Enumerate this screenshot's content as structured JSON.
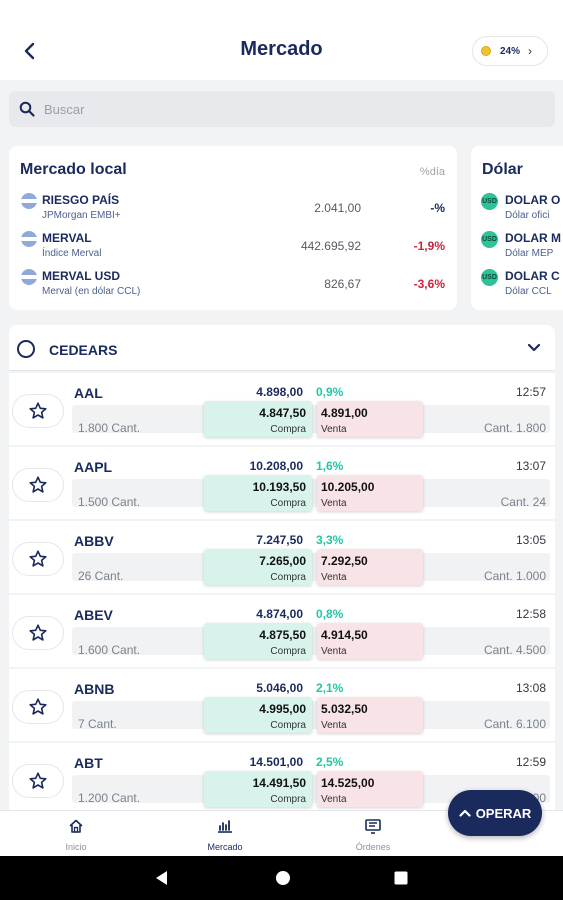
{
  "header": {
    "title": "Mercado",
    "pill_value": "24%"
  },
  "search": {
    "placeholder": "Buscar"
  },
  "local_market": {
    "title": "Mercado local",
    "column": "%día",
    "items": [
      {
        "name": "RIESGO PAÍS",
        "desc": "JPMorgan EMBI+",
        "value": "2.041,00",
        "change": "-%"
      },
      {
        "name": "MERVAL",
        "desc": "Índice Merval",
        "value": "442.695,92",
        "change": "-1,9%"
      },
      {
        "name": "MERVAL USD",
        "desc": "Merval (en dólar CCL)",
        "value": "826,67",
        "change": "-3,6%"
      }
    ]
  },
  "dolar_market": {
    "title": "Dólar",
    "items": [
      {
        "icon_text": "USD",
        "name": "DOLAR O",
        "desc": "Dólar ofici"
      },
      {
        "icon_text": "USD",
        "name": "DOLAR M",
        "desc": "Dólar MEP"
      },
      {
        "icon_text": "USD",
        "name": "DOLAR C",
        "desc": "Dólar CCL"
      }
    ]
  },
  "cedears": {
    "label": "CEDEARS",
    "rows": [
      {
        "symbol": "AAL",
        "last": "4.898,00",
        "change": "0,9%",
        "time": "12:57",
        "bid_qty": "1.800 Cant.",
        "bid": "4.847,50",
        "ask": "4.891,00",
        "ask_qty": "Cant. 1.800"
      },
      {
        "symbol": "AAPL",
        "last": "10.208,00",
        "change": "1,6%",
        "time": "13:07",
        "bid_qty": "1.500 Cant.",
        "bid": "10.193,50",
        "ask": "10.205,00",
        "ask_qty": "Cant. 24"
      },
      {
        "symbol": "ABBV",
        "last": "7.247,50",
        "change": "3,3%",
        "time": "13:05",
        "bid_qty": "26 Cant.",
        "bid": "7.265,00",
        "ask": "7.292,50",
        "ask_qty": "Cant. 1.000"
      },
      {
        "symbol": "ABEV",
        "last": "4.874,00",
        "change": "0,8%",
        "time": "12:58",
        "bid_qty": "1.600 Cant.",
        "bid": "4.875,50",
        "ask": "4.914,50",
        "ask_qty": "Cant. 4.500"
      },
      {
        "symbol": "ABNB",
        "last": "5.046,00",
        "change": "2,1%",
        "time": "13:08",
        "bid_qty": "7 Cant.",
        "bid": "4.995,00",
        "ask": "5.032,50",
        "ask_qty": "Cant. 6.100"
      },
      {
        "symbol": "ABT",
        "last": "14.501,00",
        "change": "2,5%",
        "time": "12:59",
        "bid_qty": "1.200 Cant.",
        "bid": "14.491,50",
        "ask": "14.525,00",
        "ask_qty": "Cant. 500"
      }
    ],
    "buy_label": "Compra",
    "sell_label": "Venta"
  },
  "nav": {
    "items": [
      {
        "label": "Inicio",
        "icon": "home-icon"
      },
      {
        "label": "Mercado",
        "icon": "market-icon"
      },
      {
        "label": "Órdenes",
        "icon": "orders-icon"
      }
    ]
  },
  "operar": {
    "label": "OPERAR"
  },
  "colors": {
    "primary": "#1b2a5c",
    "positive": "#22c7a5",
    "negative": "#c8243c",
    "buy_bg": "#d8f3ec",
    "sell_bg": "#f8e3e6"
  }
}
